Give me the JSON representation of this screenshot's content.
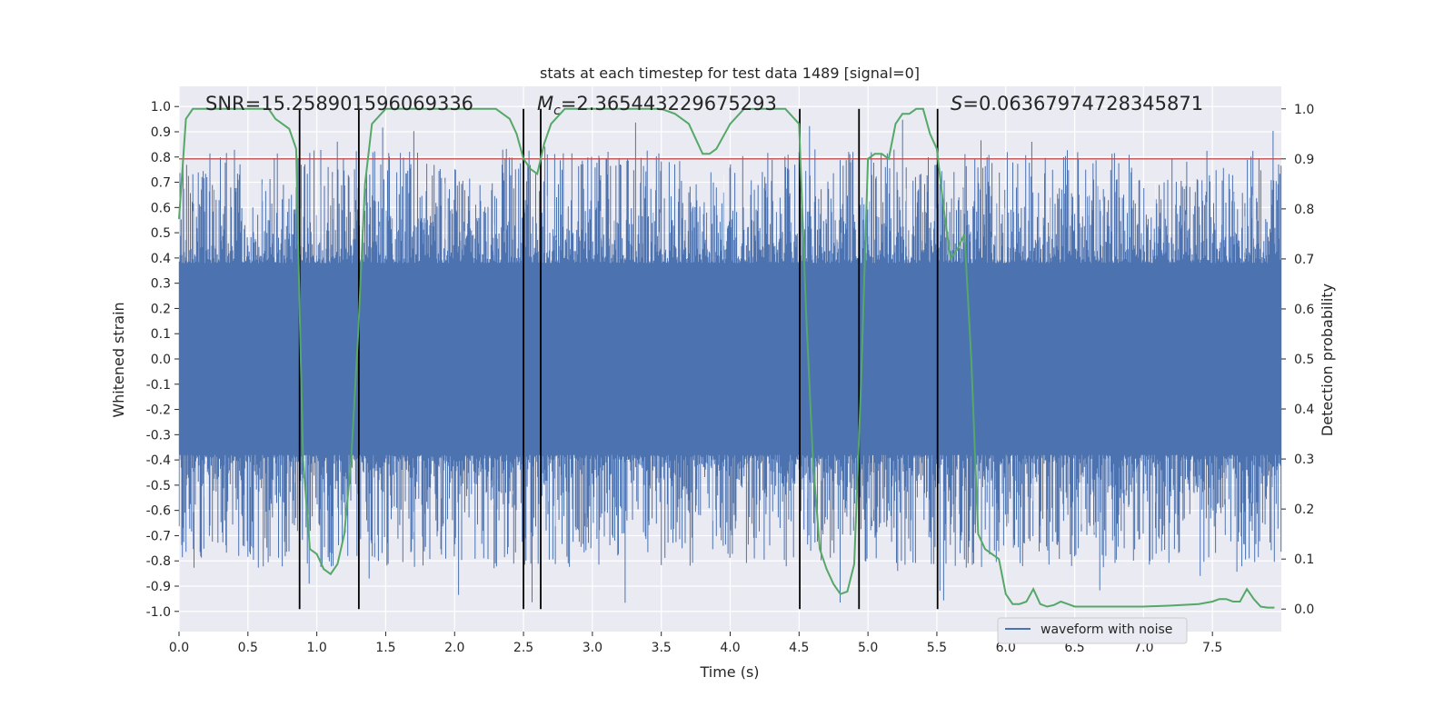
{
  "chart_data": {
    "type": "line",
    "title": "stats at each timestep for test data 1489 [signal=0]",
    "xlabel": "Time (s)",
    "ylabel_left": "Whitened strain",
    "ylabel_right": "Detection probability",
    "xlim": [
      0.0,
      8.0
    ],
    "ylim_left": [
      -1.08,
      1.08
    ],
    "ylim_right": [
      -0.045,
      1.045
    ],
    "x_ticks": [
      "0.0",
      "0.5",
      "1.0",
      "1.5",
      "2.0",
      "2.5",
      "3.0",
      "3.5",
      "4.0",
      "4.5",
      "5.0",
      "5.5",
      "6.0",
      "6.5",
      "7.0",
      "7.5"
    ],
    "y_left_ticks": [
      "1.0",
      "0.9",
      "0.8",
      "0.7",
      "0.6",
      "0.5",
      "0.4",
      "0.3",
      "0.2",
      "0.1",
      "0.0",
      "-0.1",
      "-0.2",
      "-0.3",
      "-0.4",
      "-0.5",
      "-0.6",
      "-0.7",
      "-0.8",
      "-0.9",
      "-1.0"
    ],
    "y_right_ticks": [
      "1.0",
      "0.9",
      "0.8",
      "0.7",
      "0.6",
      "0.5",
      "0.4",
      "0.3",
      "0.2",
      "0.1",
      "0.0"
    ],
    "grid": true,
    "annotations": {
      "snr": "SNR=15.258901596069336",
      "mc_symbol": "M",
      "mc_sub": "c",
      "mc_value": "=2.365443229675293",
      "s_symbol": "S",
      "s_value": "=0.06367974728345871"
    },
    "threshold": {
      "axis": "right",
      "value": 0.9,
      "color": "#c44e52"
    },
    "vertical_markers": [
      0.875,
      1.305,
      2.5,
      2.625,
      4.505,
      4.935,
      5.505
    ],
    "series": [
      {
        "name": "waveform with noise",
        "axis": "left",
        "color": "#4c72b0",
        "style": "dense noise, core band ±0.4, spikes up to ~0.95 / down to ~-0.98"
      },
      {
        "axis": "right",
        "color": "#55a868",
        "x": [
          0.0,
          0.05,
          0.1,
          0.2,
          0.3,
          0.4,
          0.5,
          0.6,
          0.65,
          0.7,
          0.8,
          0.85,
          0.875,
          0.9,
          0.95,
          1.0,
          1.05,
          1.1,
          1.15,
          1.2,
          1.25,
          1.3,
          1.35,
          1.4,
          1.5,
          1.6,
          1.8,
          2.0,
          2.2,
          2.3,
          2.35,
          2.4,
          2.45,
          2.5,
          2.55,
          2.6,
          2.65,
          2.7,
          2.8,
          2.9,
          3.0,
          3.2,
          3.4,
          3.5,
          3.6,
          3.7,
          3.75,
          3.8,
          3.85,
          3.9,
          4.0,
          4.1,
          4.2,
          4.3,
          4.4,
          4.5,
          4.55,
          4.6,
          4.65,
          4.7,
          4.75,
          4.8,
          4.85,
          4.9,
          4.95,
          5.0,
          5.05,
          5.1,
          5.15,
          5.2,
          5.25,
          5.3,
          5.35,
          5.4,
          5.45,
          5.5,
          5.55,
          5.6,
          5.65,
          5.7,
          5.75,
          5.8,
          5.85,
          5.9,
          5.95,
          6.0,
          6.05,
          6.1,
          6.15,
          6.2,
          6.25,
          6.3,
          6.35,
          6.4,
          6.45,
          6.5,
          6.6,
          6.8,
          7.0,
          7.2,
          7.4,
          7.5,
          7.55,
          7.6,
          7.65,
          7.7,
          7.75,
          7.8,
          7.85,
          7.9,
          7.95
        ],
        "values": [
          0.78,
          0.98,
          1.0,
          1.0,
          1.0,
          1.0,
          1.0,
          1.0,
          1.0,
          0.98,
          0.96,
          0.92,
          0.6,
          0.3,
          0.12,
          0.11,
          0.08,
          0.07,
          0.09,
          0.15,
          0.3,
          0.55,
          0.85,
          0.97,
          1.0,
          1.0,
          1.0,
          1.0,
          1.0,
          1.0,
          0.99,
          0.98,
          0.95,
          0.9,
          0.88,
          0.87,
          0.93,
          0.97,
          1.0,
          1.0,
          1.0,
          1.0,
          1.0,
          1.0,
          0.99,
          0.97,
          0.94,
          0.91,
          0.91,
          0.92,
          0.97,
          1.0,
          1.0,
          1.0,
          1.0,
          0.97,
          0.6,
          0.3,
          0.12,
          0.08,
          0.05,
          0.03,
          0.035,
          0.09,
          0.45,
          0.9,
          0.91,
          0.91,
          0.9,
          0.97,
          0.99,
          0.99,
          1.0,
          1.0,
          0.95,
          0.92,
          0.8,
          0.7,
          0.72,
          0.75,
          0.5,
          0.15,
          0.12,
          0.11,
          0.1,
          0.03,
          0.01,
          0.01,
          0.015,
          0.04,
          0.01,
          0.005,
          0.008,
          0.015,
          0.01,
          0.005,
          0.005,
          0.005,
          0.005,
          0.007,
          0.01,
          0.015,
          0.02,
          0.02,
          0.015,
          0.015,
          0.04,
          0.02,
          0.005,
          0.003,
          0.003
        ]
      }
    ],
    "legend": {
      "label": "waveform with noise",
      "placement": "lower-right"
    },
    "colors": {
      "axes_bg": "#eaeaf2",
      "grid": "#ffffff",
      "vline": "#000000"
    }
  }
}
